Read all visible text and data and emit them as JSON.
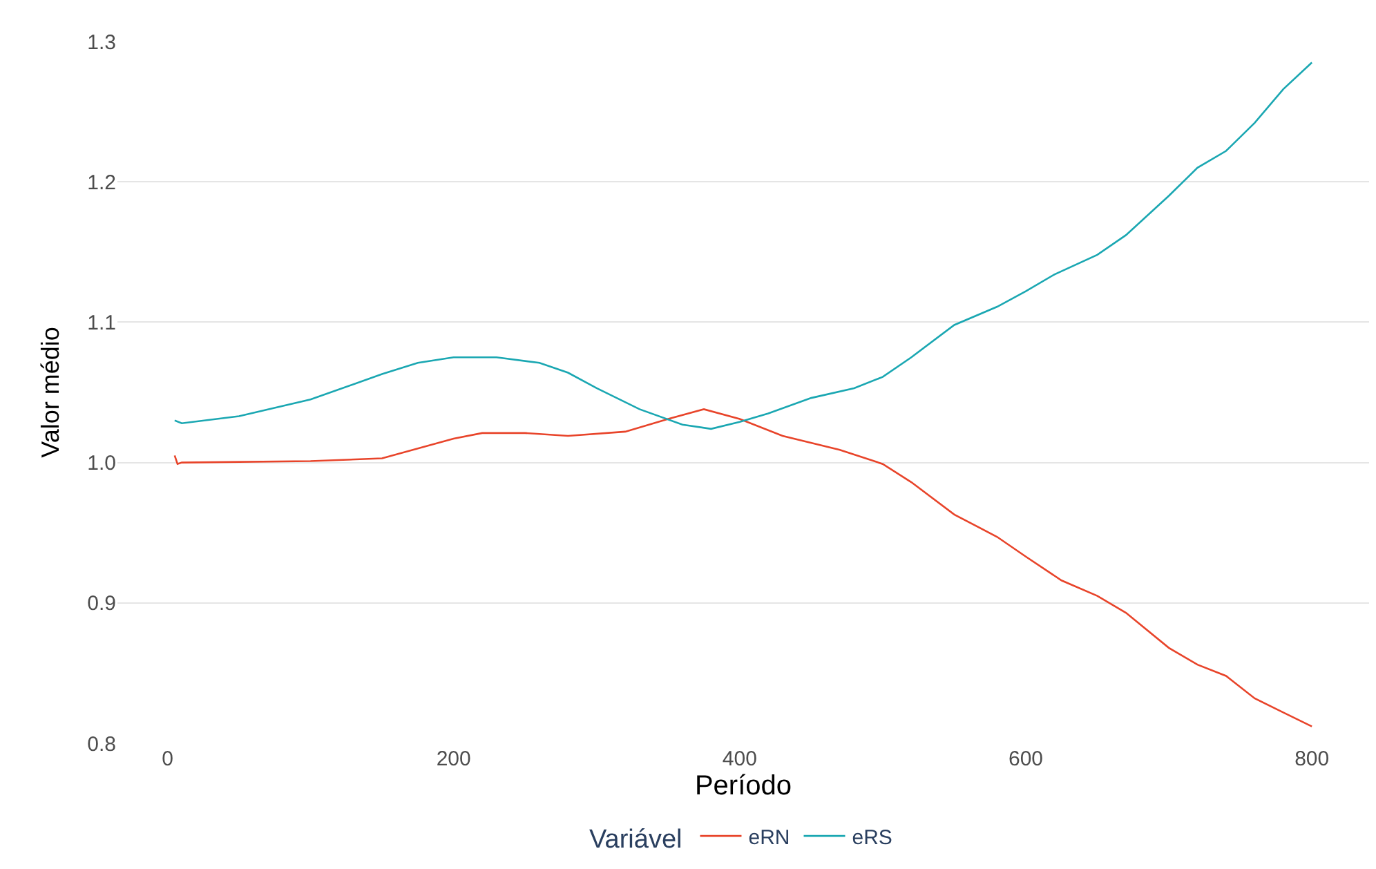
{
  "chart_data": {
    "type": "line",
    "xlabel": "Período",
    "ylabel": "Valor médio",
    "legend_title": "Variável",
    "legend": "bottom",
    "grid": "y",
    "xlim": [
      -35,
      840
    ],
    "xticks": [
      0,
      200,
      400,
      600,
      800
    ],
    "ylim": [
      0.8,
      1.3
    ],
    "yticks": [
      {
        "value": 0.8,
        "label": "0.8"
      },
      {
        "value": 0.9,
        "label": "0.9"
      },
      {
        "value": 1.0,
        "label": "1.0"
      },
      {
        "value": 1.1,
        "label": "1.1"
      },
      {
        "value": 1.2,
        "label": "1.2"
      },
      {
        "value": 1.3,
        "label": "1.3"
      }
    ],
    "series": [
      {
        "name": "eRN",
        "color": "#e8442a",
        "x": [
          5,
          7,
          10,
          100,
          150,
          200,
          220,
          250,
          280,
          320,
          350,
          375,
          400,
          430,
          470,
          500,
          520,
          550,
          580,
          600,
          625,
          650,
          670,
          700,
          720,
          740,
          760,
          780,
          800
        ],
        "values": [
          1.005,
          0.999,
          1.0,
          1.001,
          1.003,
          1.017,
          1.021,
          1.021,
          1.019,
          1.022,
          1.031,
          1.038,
          1.031,
          1.019,
          1.009,
          0.999,
          0.986,
          0.963,
          0.947,
          0.933,
          0.916,
          0.905,
          0.893,
          0.868,
          0.856,
          0.848,
          0.832,
          0.822,
          0.812
        ]
      },
      {
        "name": "eRS",
        "color": "#1aa7b2",
        "x": [
          5,
          10,
          50,
          100,
          150,
          175,
          200,
          230,
          260,
          280,
          300,
          330,
          360,
          380,
          400,
          420,
          450,
          480,
          500,
          520,
          550,
          580,
          600,
          620,
          650,
          670,
          700,
          720,
          740,
          760,
          780,
          800
        ],
        "values": [
          1.03,
          1.028,
          1.033,
          1.045,
          1.063,
          1.071,
          1.075,
          1.075,
          1.071,
          1.064,
          1.053,
          1.038,
          1.027,
          1.024,
          1.029,
          1.035,
          1.046,
          1.053,
          1.061,
          1.075,
          1.098,
          1.111,
          1.122,
          1.134,
          1.148,
          1.162,
          1.19,
          1.21,
          1.222,
          1.242,
          1.266,
          1.285
        ]
      }
    ]
  }
}
